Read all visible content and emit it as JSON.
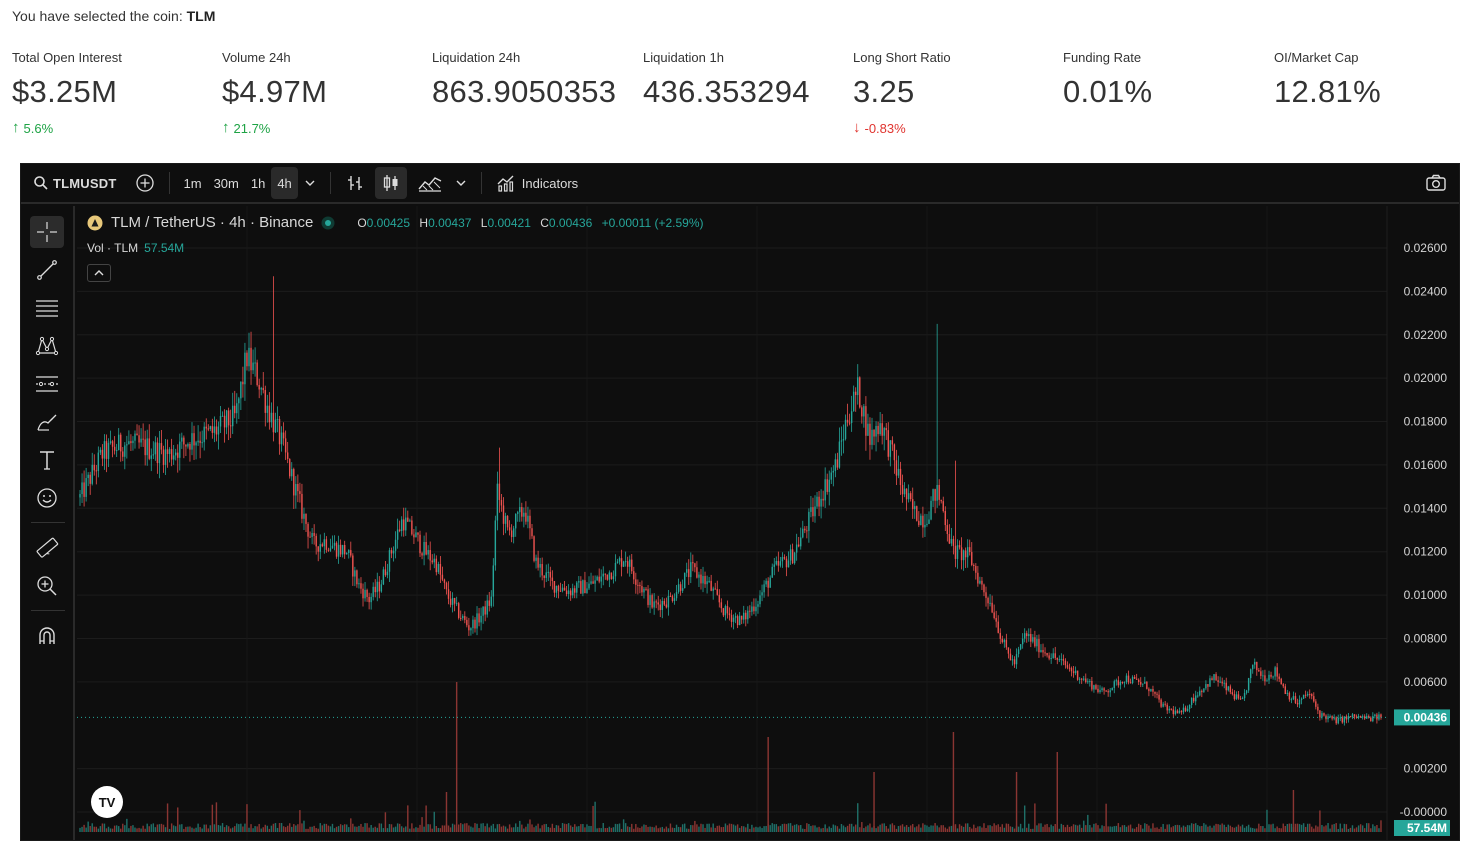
{
  "header": {
    "selected_prefix": "You have selected the coin:",
    "coin": "TLM"
  },
  "stats": [
    {
      "label": "Total Open Interest",
      "value": "$3.25M",
      "change": "5.6%",
      "direction": "up"
    },
    {
      "label": "Volume 24h",
      "value": "$4.97M",
      "change": "21.7%",
      "direction": "up"
    },
    {
      "label": "Liquidation 24h",
      "value": "863.9050353",
      "change": "",
      "direction": "none"
    },
    {
      "label": "Liquidation 1h",
      "value": "436.353294",
      "change": "",
      "direction": "none"
    },
    {
      "label": "Long Short Ratio",
      "value": "3.25",
      "change": "-0.83%",
      "direction": "down"
    },
    {
      "label": "Funding Rate",
      "value": "0.01%",
      "change": "",
      "direction": "none"
    },
    {
      "label": "OI/Market Cap",
      "value": "12.81%",
      "change": "",
      "direction": "none"
    }
  ],
  "toolbar": {
    "symbol": "TLMUSDT",
    "intervals": [
      "1m",
      "30m",
      "1h",
      "4h"
    ],
    "active_interval": "4h",
    "indicators_label": "Indicators"
  },
  "legend": {
    "title": "TLM / TetherUS · 4h · Binance",
    "o_label": "O",
    "o": "0.00425",
    "h_label": "H",
    "h": "0.00437",
    "l_label": "L",
    "l": "0.00421",
    "c_label": "C",
    "c": "0.00436",
    "change": "+0.00011 (+2.59%)",
    "vol_label": "Vol · TLM",
    "vol_value": "57.54M"
  },
  "chart_data": {
    "type": "candlestick",
    "price_axis_ticks": [
      "0.02600",
      "0.02400",
      "0.02200",
      "0.02000",
      "0.01800",
      "0.01600",
      "0.01400",
      "0.01200",
      "0.01000",
      "0.00800",
      "0.00600",
      "0.00436",
      "0.00200",
      "-0.00000"
    ],
    "last_price": "0.00436",
    "last_volume": "57.54M",
    "ylim": [
      0,
      0.027
    ],
    "trend_points": [
      [
        0,
        0.0145
      ],
      [
        4,
        0.0165
      ],
      [
        8,
        0.017
      ],
      [
        12,
        0.0168
      ],
      [
        16,
        0.0165
      ],
      [
        20,
        0.0172
      ],
      [
        24,
        0.0175
      ],
      [
        28,
        0.0182
      ],
      [
        30,
        0.021
      ],
      [
        32,
        0.02
      ],
      [
        34,
        0.0185
      ],
      [
        36,
        0.0172
      ],
      [
        38,
        0.0155
      ],
      [
        40,
        0.0138
      ],
      [
        42,
        0.0123
      ],
      [
        44,
        0.0125
      ],
      [
        46,
        0.0122
      ],
      [
        48,
        0.012
      ],
      [
        50,
        0.0105
      ],
      [
        52,
        0.0098
      ],
      [
        54,
        0.0105
      ],
      [
        56,
        0.012
      ],
      [
        58,
        0.0135
      ],
      [
        60,
        0.0128
      ],
      [
        62,
        0.012
      ],
      [
        64,
        0.0115
      ],
      [
        66,
        0.01
      ],
      [
        68,
        0.0092
      ],
      [
        70,
        0.0085
      ],
      [
        72,
        0.009
      ],
      [
        74,
        0.0098
      ],
      [
        75,
        0.0148
      ],
      [
        77,
        0.0128
      ],
      [
        80,
        0.014
      ],
      [
        82,
        0.0115
      ],
      [
        85,
        0.0105
      ],
      [
        88,
        0.0102
      ],
      [
        92,
        0.0105
      ],
      [
        96,
        0.0112
      ],
      [
        98,
        0.0118
      ],
      [
        100,
        0.0108
      ],
      [
        103,
        0.0095
      ],
      [
        106,
        0.0098
      ],
      [
        110,
        0.0112
      ],
      [
        113,
        0.0105
      ],
      [
        116,
        0.0092
      ],
      [
        119,
        0.0088
      ],
      [
        122,
        0.0098
      ],
      [
        125,
        0.0112
      ],
      [
        128,
        0.0118
      ],
      [
        130,
        0.0128
      ],
      [
        133,
        0.0145
      ],
      [
        136,
        0.016
      ],
      [
        138,
        0.0182
      ],
      [
        140,
        0.0195
      ],
      [
        142,
        0.0172
      ],
      [
        144,
        0.018
      ],
      [
        146,
        0.0165
      ],
      [
        148,
        0.0148
      ],
      [
        150,
        0.0138
      ],
      [
        152,
        0.0135
      ],
      [
        154,
        0.0148
      ],
      [
        155,
        0.0142
      ],
      [
        157,
        0.012
      ],
      [
        160,
        0.0118
      ],
      [
        162,
        0.0105
      ],
      [
        164,
        0.0095
      ],
      [
        166,
        0.0078
      ],
      [
        168,
        0.0068
      ],
      [
        170,
        0.0082
      ],
      [
        173,
        0.0075
      ],
      [
        176,
        0.007
      ],
      [
        180,
        0.0062
      ],
      [
        184,
        0.0055
      ],
      [
        188,
        0.0062
      ],
      [
        192,
        0.0058
      ],
      [
        195,
        0.0048
      ],
      [
        198,
        0.0045
      ],
      [
        201,
        0.0055
      ],
      [
        204,
        0.0062
      ],
      [
        207,
        0.0055
      ],
      [
        209,
        0.005
      ],
      [
        211,
        0.0068
      ],
      [
        213,
        0.0062
      ],
      [
        215,
        0.0065
      ],
      [
        217,
        0.0055
      ],
      [
        219,
        0.005
      ],
      [
        221,
        0.0055
      ],
      [
        223,
        0.0045
      ],
      [
        226,
        0.0042
      ],
      [
        229,
        0.0044
      ],
      [
        232,
        0.0043
      ],
      [
        234,
        0.0044
      ]
    ]
  }
}
